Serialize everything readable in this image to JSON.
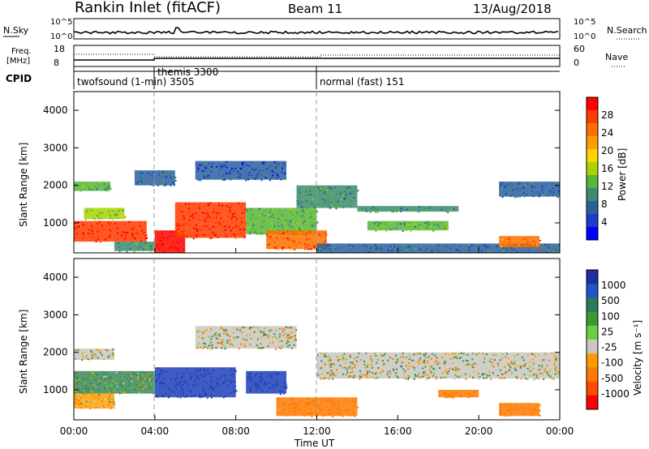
{
  "header": {
    "station": "Rankin Inlet (fitACF)",
    "beam": "Beam 11",
    "date": "13/Aug/2018"
  },
  "panels": {
    "nsky": {
      "label": "N.Sky",
      "ticks": [
        "10^5",
        "10^0"
      ],
      "right_label": "N.Search",
      "right_ticks": [
        "10^5",
        "10^0"
      ]
    },
    "freq": {
      "label_line1": "Freq.",
      "label_line2": "[MHz]",
      "ticks": [
        "18",
        "8"
      ],
      "right_label": "Nave",
      "right_ticks": [
        "60",
        "0"
      ]
    },
    "cpid": {
      "label": "CPID",
      "segments": [
        {
          "text": "twofsound (1-min) 3505",
          "start": "00:00"
        },
        {
          "text": "themis 3300",
          "start": "04:00"
        },
        {
          "text": "normal (fast) 151",
          "start": "12:00"
        }
      ]
    }
  },
  "power_panel": {
    "ylabel": "Slant Range [km]",
    "yticks": [
      "4000",
      "3000",
      "2000",
      "1000"
    ],
    "cbar_label": "Power [dB]",
    "cbar_ticks": [
      "28",
      "24",
      "20",
      "16",
      "12",
      "8",
      "4"
    ],
    "cbar_colors": [
      "#ff0000",
      "#ff3b00",
      "#ff6e00",
      "#ffa000",
      "#ffd300",
      "#a8d400",
      "#56b53a",
      "#3b8c6c",
      "#2a5fa0",
      "#1d3cc8",
      "#0000ff"
    ]
  },
  "velocity_panel": {
    "ylabel": "Slant Range [km]",
    "yticks": [
      "4000",
      "3000",
      "2000",
      "1000"
    ],
    "cbar_label": "Velocity [m s⁻¹]",
    "cbar_ticks": [
      "1000",
      "500",
      "100",
      "25",
      "-25",
      "-100",
      "-500",
      "-1000"
    ],
    "cbar_colors": [
      "#1a2fa0",
      "#1f55c8",
      "#2a7a5a",
      "#3a9a3a",
      "#6ad040",
      "#c8c8c0",
      "#ff9a00",
      "#ff7a00",
      "#ff4a00",
      "#ff0000"
    ]
  },
  "xaxis": {
    "ticks": [
      "00:00",
      "04:00",
      "08:00",
      "12:00",
      "16:00",
      "20:00",
      "00:00"
    ],
    "label": "Time UT"
  },
  "chart_data": {
    "type": "heatmap",
    "xlabel": "Time UT",
    "ylabel": "Slant Range [km]",
    "xlim": [
      0,
      24
    ],
    "ylim": [
      200,
      4500
    ],
    "vertical_markers_hours": [
      4,
      12
    ],
    "power_regions": [
      {
        "t": [
          0,
          1.8
        ],
        "r": [
          1850,
          2100
        ],
        "dB": 12
      },
      {
        "t": [
          0,
          3.6
        ],
        "r": [
          500,
          1050
        ],
        "dB": 26
      },
      {
        "t": [
          0.5,
          2.5
        ],
        "r": [
          1100,
          1400
        ],
        "dB": 14
      },
      {
        "t": [
          2.0,
          4.0
        ],
        "r": [
          250,
          500
        ],
        "dB": 10
      },
      {
        "t": [
          4.0,
          5.5
        ],
        "r": [
          200,
          800
        ],
        "dB": 28
      },
      {
        "t": [
          5.0,
          8.5
        ],
        "r": [
          600,
          1550
        ],
        "dB": 26
      },
      {
        "t": [
          3.0,
          5.0
        ],
        "r": [
          2000,
          2400
        ],
        "dB": 8
      },
      {
        "t": [
          6.0,
          10.5
        ],
        "r": [
          2150,
          2650
        ],
        "dB": 6
      },
      {
        "t": [
          8.5,
          12.0
        ],
        "r": [
          700,
          1400
        ],
        "dB": 12
      },
      {
        "t": [
          9.5,
          12.5
        ],
        "r": [
          300,
          800
        ],
        "dB": 24
      },
      {
        "t": [
          11.0,
          14.0
        ],
        "r": [
          1400,
          2000
        ],
        "dB": 10
      },
      {
        "t": [
          14.0,
          19.0
        ],
        "r": [
          1300,
          1450
        ],
        "dB": 10
      },
      {
        "t": [
          14.5,
          18.5
        ],
        "r": [
          800,
          1050
        ],
        "dB": 12
      },
      {
        "t": [
          12.0,
          24.0
        ],
        "r": [
          200,
          450
        ],
        "dB": 8
      },
      {
        "t": [
          21.0,
          23.0
        ],
        "r": [
          350,
          650
        ],
        "dB": 22
      },
      {
        "t": [
          21.0,
          24.0
        ],
        "r": [
          1700,
          2100
        ],
        "dB": 8
      }
    ],
    "velocity_regions": [
      {
        "t": [
          0,
          2.0
        ],
        "r": [
          1800,
          2100
        ],
        "v": 0
      },
      {
        "t": [
          0,
          4.0
        ],
        "r": [
          900,
          1500
        ],
        "v": 100
      },
      {
        "t": [
          0,
          2.0
        ],
        "r": [
          500,
          900
        ],
        "v": -100
      },
      {
        "t": [
          4.0,
          8.0
        ],
        "r": [
          800,
          1600
        ],
        "v": 800
      },
      {
        "t": [
          6.0,
          11.0
        ],
        "r": [
          2100,
          2700
        ],
        "v": 0
      },
      {
        "t": [
          8.5,
          10.5
        ],
        "r": [
          900,
          1500
        ],
        "v": 800
      },
      {
        "t": [
          10.0,
          14.0
        ],
        "r": [
          300,
          800
        ],
        "v": -300
      },
      {
        "t": [
          12.0,
          24.0
        ],
        "r": [
          1300,
          2000
        ],
        "v": 0
      },
      {
        "t": [
          18.0,
          20.0
        ],
        "r": [
          800,
          1000
        ],
        "v": -300
      },
      {
        "t": [
          21.0,
          23.0
        ],
        "r": [
          300,
          650
        ],
        "v": -300
      }
    ]
  }
}
